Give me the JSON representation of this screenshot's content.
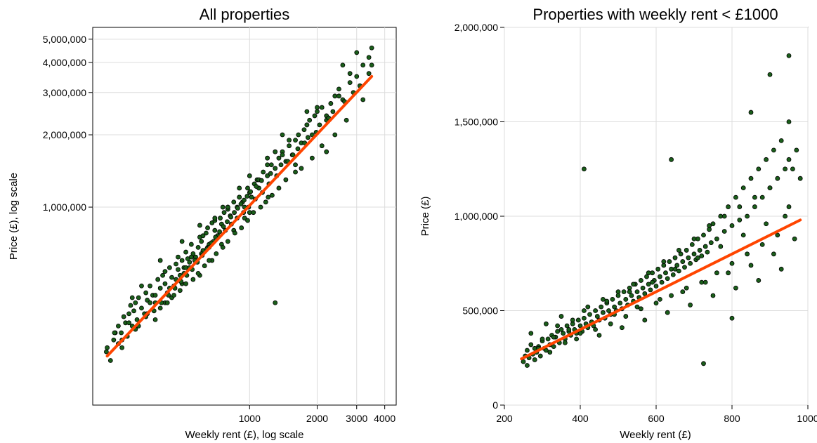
{
  "chart_data": [
    {
      "type": "scatter",
      "title": "All properties",
      "xlabel": "Weekly rent (£), log scale",
      "ylabel": "Price (£), log scale",
      "x_scale": "log",
      "y_scale": "log",
      "xlim": [
        200,
        4500
      ],
      "ylim": [
        150000,
        5600000
      ],
      "x_ticks": [
        {
          "value": 1000,
          "label": "1000"
        },
        {
          "value": 2000,
          "label": "2000"
        },
        {
          "value": 3000,
          "label": "3000"
        },
        {
          "value": 4000,
          "label": "4000"
        }
      ],
      "y_ticks": [
        {
          "value": 1000000,
          "label": "1,000,000"
        },
        {
          "value": 2000000,
          "label": "2,000,000"
        },
        {
          "value": 3000000,
          "label": "3,000,000"
        },
        {
          "value": 4000000,
          "label": "4,000,000"
        },
        {
          "value": 5000000,
          "label": "5,000,000"
        }
      ],
      "grid": true,
      "point_color": "#1a5e1a",
      "point_edge_color": "#000000",
      "line_color": "#ff4500",
      "series": [
        {
          "type": "scatter",
          "x": [
            232,
            240,
            248,
            252,
            260,
            268,
            270,
            275,
            280,
            285,
            290,
            295,
            300,
            305,
            310,
            315,
            320,
            330,
            340,
            345,
            350,
            360,
            370,
            380,
            390,
            400,
            410,
            420,
            430,
            440,
            450,
            460,
            470,
            480,
            490,
            500,
            510,
            520,
            530,
            540,
            550,
            560,
            575,
            590,
            600,
            610,
            620,
            640,
            650,
            660,
            680,
            700,
            720,
            740,
            750,
            770,
            800,
            820,
            850,
            880,
            900,
            930,
            950,
            980,
            1000,
            1020,
            1050,
            1080,
            1100,
            1150,
            1200,
            1250,
            1300,
            1350,
            1400,
            1450,
            1500,
            1550,
            1600,
            1650,
            1700,
            1750,
            1800,
            1850,
            1900,
            1950,
            2000,
            2100,
            2200,
            2300,
            2400,
            2500,
            2600,
            2800,
            3000,
            3200,
            3400,
            3500,
            300,
            350,
            330,
            400,
            420,
            450,
            480,
            500,
            520,
            550,
            600,
            620,
            650,
            680,
            700,
            750,
            800,
            850,
            900,
            950,
            1000,
            1100,
            1200,
            1300,
            1400,
            1500,
            1600,
            1800,
            2000,
            2200,
            2500,
            2800,
            3000,
            3500,
            400,
            500,
            600,
            700,
            800,
            900,
            1000,
            1200,
            1400,
            1600,
            1800,
            2200,
            2600,
            250,
            270,
            290,
            310,
            350,
            380,
            420,
            460,
            490,
            520,
            560,
            590,
            630,
            660,
            710,
            760,
            800,
            860,
            920,
            980,
            1040,
            1120,
            1180,
            1260,
            1350,
            1450,
            1700,
            1900,
            2100,
            2400,
            2700,
            3200,
            360,
            380,
            440,
            470,
            510,
            540,
            570,
            610,
            660,
            690,
            720,
            780,
            830,
            880,
            940,
            990,
            1060,
            1140,
            1220,
            1320,
            1480,
            1640,
            1820,
            2050,
            2350,
            2900,
            3400,
            230,
            260,
            285,
            320,
            345,
            375,
            405,
            435,
            465,
            495,
            525,
            555,
            585,
            615,
            645,
            675,
            705,
            735,
            765,
            795,
            825,
            855,
            885,
            915,
            945,
            975,
            1010,
            1070,
            1130,
            1240,
            1380,
            1560,
            1760,
            1980,
            2250,
            2650,
            3100,
            1300,
            430,
            760,
            1210
          ],
          "y": [
            260000,
            230000,
            280000,
            300000,
            320000,
            300000,
            260000,
            350000,
            330000,
            290000,
            360000,
            390000,
            320000,
            370000,
            400000,
            340000,
            420000,
            380000,
            360000,
            440000,
            410000,
            470000,
            430000,
            400000,
            500000,
            460000,
            520000,
            480000,
            440000,
            560000,
            510000,
            470000,
            580000,
            550000,
            520000,
            600000,
            560000,
            650000,
            610000,
            590000,
            700000,
            640000,
            620000,
            680000,
            750000,
            720000,
            660000,
            780000,
            820000,
            700000,
            860000,
            800000,
            760000,
            900000,
            850000,
            950000,
            980000,
            920000,
            1050000,
            1000000,
            1100000,
            1050000,
            1000000,
            1200000,
            1150000,
            1100000,
            1250000,
            1300000,
            1200000,
            1400000,
            1350000,
            1500000,
            1450000,
            1600000,
            1700000,
            1550000,
            1800000,
            1650000,
            1900000,
            2000000,
            1850000,
            2100000,
            2200000,
            2300000,
            2000000,
            2400000,
            2500000,
            2600000,
            2300000,
            2700000,
            2900000,
            3100000,
            2800000,
            3300000,
            3500000,
            3900000,
            4200000,
            4600000,
            420000,
            360000,
            470000,
            380000,
            540000,
            420000,
            620000,
            480000,
            560000,
            620000,
            520000,
            760000,
            680000,
            600000,
            880000,
            700000,
            1000000,
            800000,
            1100000,
            900000,
            950000,
            1300000,
            1500000,
            1700000,
            1650000,
            1900000,
            1500000,
            2200000,
            2600000,
            2400000,
            2900000,
            3600000,
            4400000,
            3900000,
            600000,
            720000,
            840000,
            900000,
            1000000,
            1200000,
            1350000,
            1600000,
            2000000,
            1400000,
            2500000,
            1700000,
            3900000,
            300000,
            280000,
            330000,
            310000,
            360000,
            340000,
            400000,
            430000,
            450000,
            480000,
            500000,
            530000,
            570000,
            600000,
            640000,
            680000,
            720000,
            780000,
            820000,
            880000,
            950000,
            1000000,
            1050000,
            1120000,
            1200000,
            1300000,
            1450000,
            1600000,
            1800000,
            2000000,
            2300000,
            2800000,
            400000,
            430000,
            460000,
            500000,
            530000,
            560000,
            600000,
            640000,
            680000,
            720000,
            760000,
            800000,
            850000,
            900000,
            950000,
            1000000,
            1080000,
            1150000,
            1250000,
            1350000,
            1550000,
            1750000,
            1950000,
            2200000,
            2500000,
            3000000,
            3600000,
            250000,
            270000,
            290000,
            320000,
            350000,
            370000,
            400000,
            430000,
            460000,
            490000,
            520000,
            550000,
            590000,
            630000,
            670000,
            710000,
            750000,
            790000,
            830000,
            870000,
            910000,
            950000,
            990000,
            1030000,
            1070000,
            1110000,
            1160000,
            1220000,
            1290000,
            1380000,
            1500000,
            1650000,
            1850000,
            2050000,
            2350000,
            2750000,
            3200000,
            400000,
            400000,
            1000000,
            1100000
          ]
        },
        {
          "type": "line",
          "name": "fit",
          "x": [
            232,
            3500
          ],
          "y": [
            240000,
            3500000
          ]
        }
      ]
    },
    {
      "type": "scatter",
      "title": "Properties with weekly rent < £1000",
      "xlabel": "Weekly rent (£)",
      "ylabel": "Price (£)",
      "xlim": [
        200,
        1000
      ],
      "ylim": [
        0,
        2000000
      ],
      "x_ticks": [
        {
          "value": 200,
          "label": "200"
        },
        {
          "value": 400,
          "label": "400"
        },
        {
          "value": 600,
          "label": "600"
        },
        {
          "value": 800,
          "label": "800"
        },
        {
          "value": 1000,
          "label": "1000"
        }
      ],
      "y_ticks": [
        {
          "value": 0,
          "label": "0"
        },
        {
          "value": 500000,
          "label": "500,000"
        },
        {
          "value": 1000000,
          "label": "1,000,000"
        },
        {
          "value": 1500000,
          "label": "1,500,000"
        },
        {
          "value": 2000000,
          "label": "2,000,000"
        }
      ],
      "grid": true,
      "point_color": "#1a5e1a",
      "point_edge_color": "#000000",
      "line_color": "#ff4500",
      "series": [
        {
          "type": "scatter",
          "x": [
            250,
            255,
            260,
            265,
            270,
            275,
            280,
            285,
            290,
            295,
            300,
            305,
            310,
            315,
            320,
            325,
            330,
            335,
            340,
            345,
            350,
            355,
            360,
            365,
            370,
            375,
            380,
            385,
            390,
            395,
            400,
            405,
            410,
            415,
            420,
            425,
            430,
            435,
            440,
            445,
            450,
            455,
            460,
            465,
            470,
            475,
            480,
            485,
            490,
            495,
            500,
            505,
            510,
            515,
            520,
            525,
            530,
            535,
            540,
            545,
            550,
            555,
            560,
            565,
            570,
            575,
            580,
            585,
            590,
            595,
            600,
            605,
            610,
            615,
            620,
            625,
            630,
            635,
            640,
            645,
            650,
            655,
            660,
            665,
            670,
            675,
            680,
            685,
            690,
            695,
            700,
            705,
            710,
            715,
            720,
            725,
            730,
            735,
            740,
            745,
            750,
            760,
            770,
            780,
            790,
            800,
            810,
            820,
            830,
            840,
            850,
            860,
            870,
            880,
            890,
            900,
            910,
            920,
            930,
            940,
            950,
            960,
            970,
            980,
            260,
            280,
            300,
            320,
            340,
            360,
            380,
            400,
            420,
            440,
            460,
            480,
            500,
            520,
            540,
            560,
            580,
            600,
            620,
            640,
            660,
            680,
            700,
            720,
            740,
            760,
            780,
            800,
            820,
            840,
            860,
            880,
            900,
            920,
            940,
            950,
            270,
            290,
            310,
            330,
            350,
            370,
            390,
            410,
            430,
            450,
            470,
            490,
            510,
            530,
            550,
            570,
            590,
            610,
            630,
            650,
            670,
            690,
            710,
            730,
            750,
            770,
            790,
            810,
            830,
            850,
            870,
            890,
            910,
            930,
            950,
            965,
            410,
            640,
            725,
            800,
            850,
            900,
            950
          ],
          "y": [
            230000,
            260000,
            290000,
            250000,
            320000,
            270000,
            300000,
            280000,
            310000,
            260000,
            340000,
            300000,
            290000,
            350000,
            320000,
            370000,
            310000,
            360000,
            390000,
            330000,
            400000,
            380000,
            350000,
            420000,
            390000,
            370000,
            430000,
            400000,
            380000,
            450000,
            420000,
            390000,
            460000,
            430000,
            410000,
            480000,
            440000,
            420000,
            500000,
            470000,
            450000,
            520000,
            490000,
            460000,
            540000,
            500000,
            480000,
            560000,
            520000,
            500000,
            580000,
            540000,
            510000,
            600000,
            560000,
            530000,
            620000,
            580000,
            550000,
            640000,
            600000,
            570000,
            660000,
            620000,
            590000,
            680000,
            640000,
            610000,
            700000,
            660000,
            630000,
            720000,
            680000,
            650000,
            740000,
            700000,
            670000,
            760000,
            720000,
            690000,
            780000,
            740000,
            710000,
            800000,
            760000,
            730000,
            820000,
            780000,
            750000,
            850000,
            800000,
            770000,
            880000,
            820000,
            790000,
            900000,
            840000,
            810000,
            930000,
            860000,
            960000,
            880000,
            1000000,
            920000,
            1050000,
            950000,
            1100000,
            980000,
            1150000,
            1000000,
            1200000,
            1050000,
            1250000,
            1100000,
            1300000,
            1150000,
            1350000,
            1200000,
            1400000,
            1000000,
            1500000,
            1250000,
            1350000,
            1200000,
            210000,
            240000,
            350000,
            280000,
            420000,
            330000,
            450000,
            380000,
            520000,
            400000,
            560000,
            430000,
            600000,
            470000,
            640000,
            510000,
            700000,
            540000,
            760000,
            580000,
            820000,
            620000,
            880000,
            650000,
            950000,
            700000,
            1000000,
            750000,
            1050000,
            800000,
            1100000,
            850000,
            1150000,
            900000,
            1250000,
            1300000,
            380000,
            300000,
            430000,
            360000,
            470000,
            400000,
            350000,
            500000,
            440000,
            370000,
            550000,
            480000,
            410000,
            600000,
            520000,
            450000,
            650000,
            560000,
            490000,
            720000,
            600000,
            530000,
            780000,
            650000,
            580000,
            840000,
            700000,
            620000,
            900000,
            740000,
            660000,
            960000,
            800000,
            720000,
            1050000,
            880000,
            1250000,
            1300000,
            220000,
            460000,
            1550000,
            1750000,
            1850000
          ],
          "r": 3
        },
        {
          "type": "line",
          "name": "fit",
          "x": [
            245,
            980
          ],
          "y": [
            245000,
            980000
          ]
        }
      ]
    }
  ]
}
